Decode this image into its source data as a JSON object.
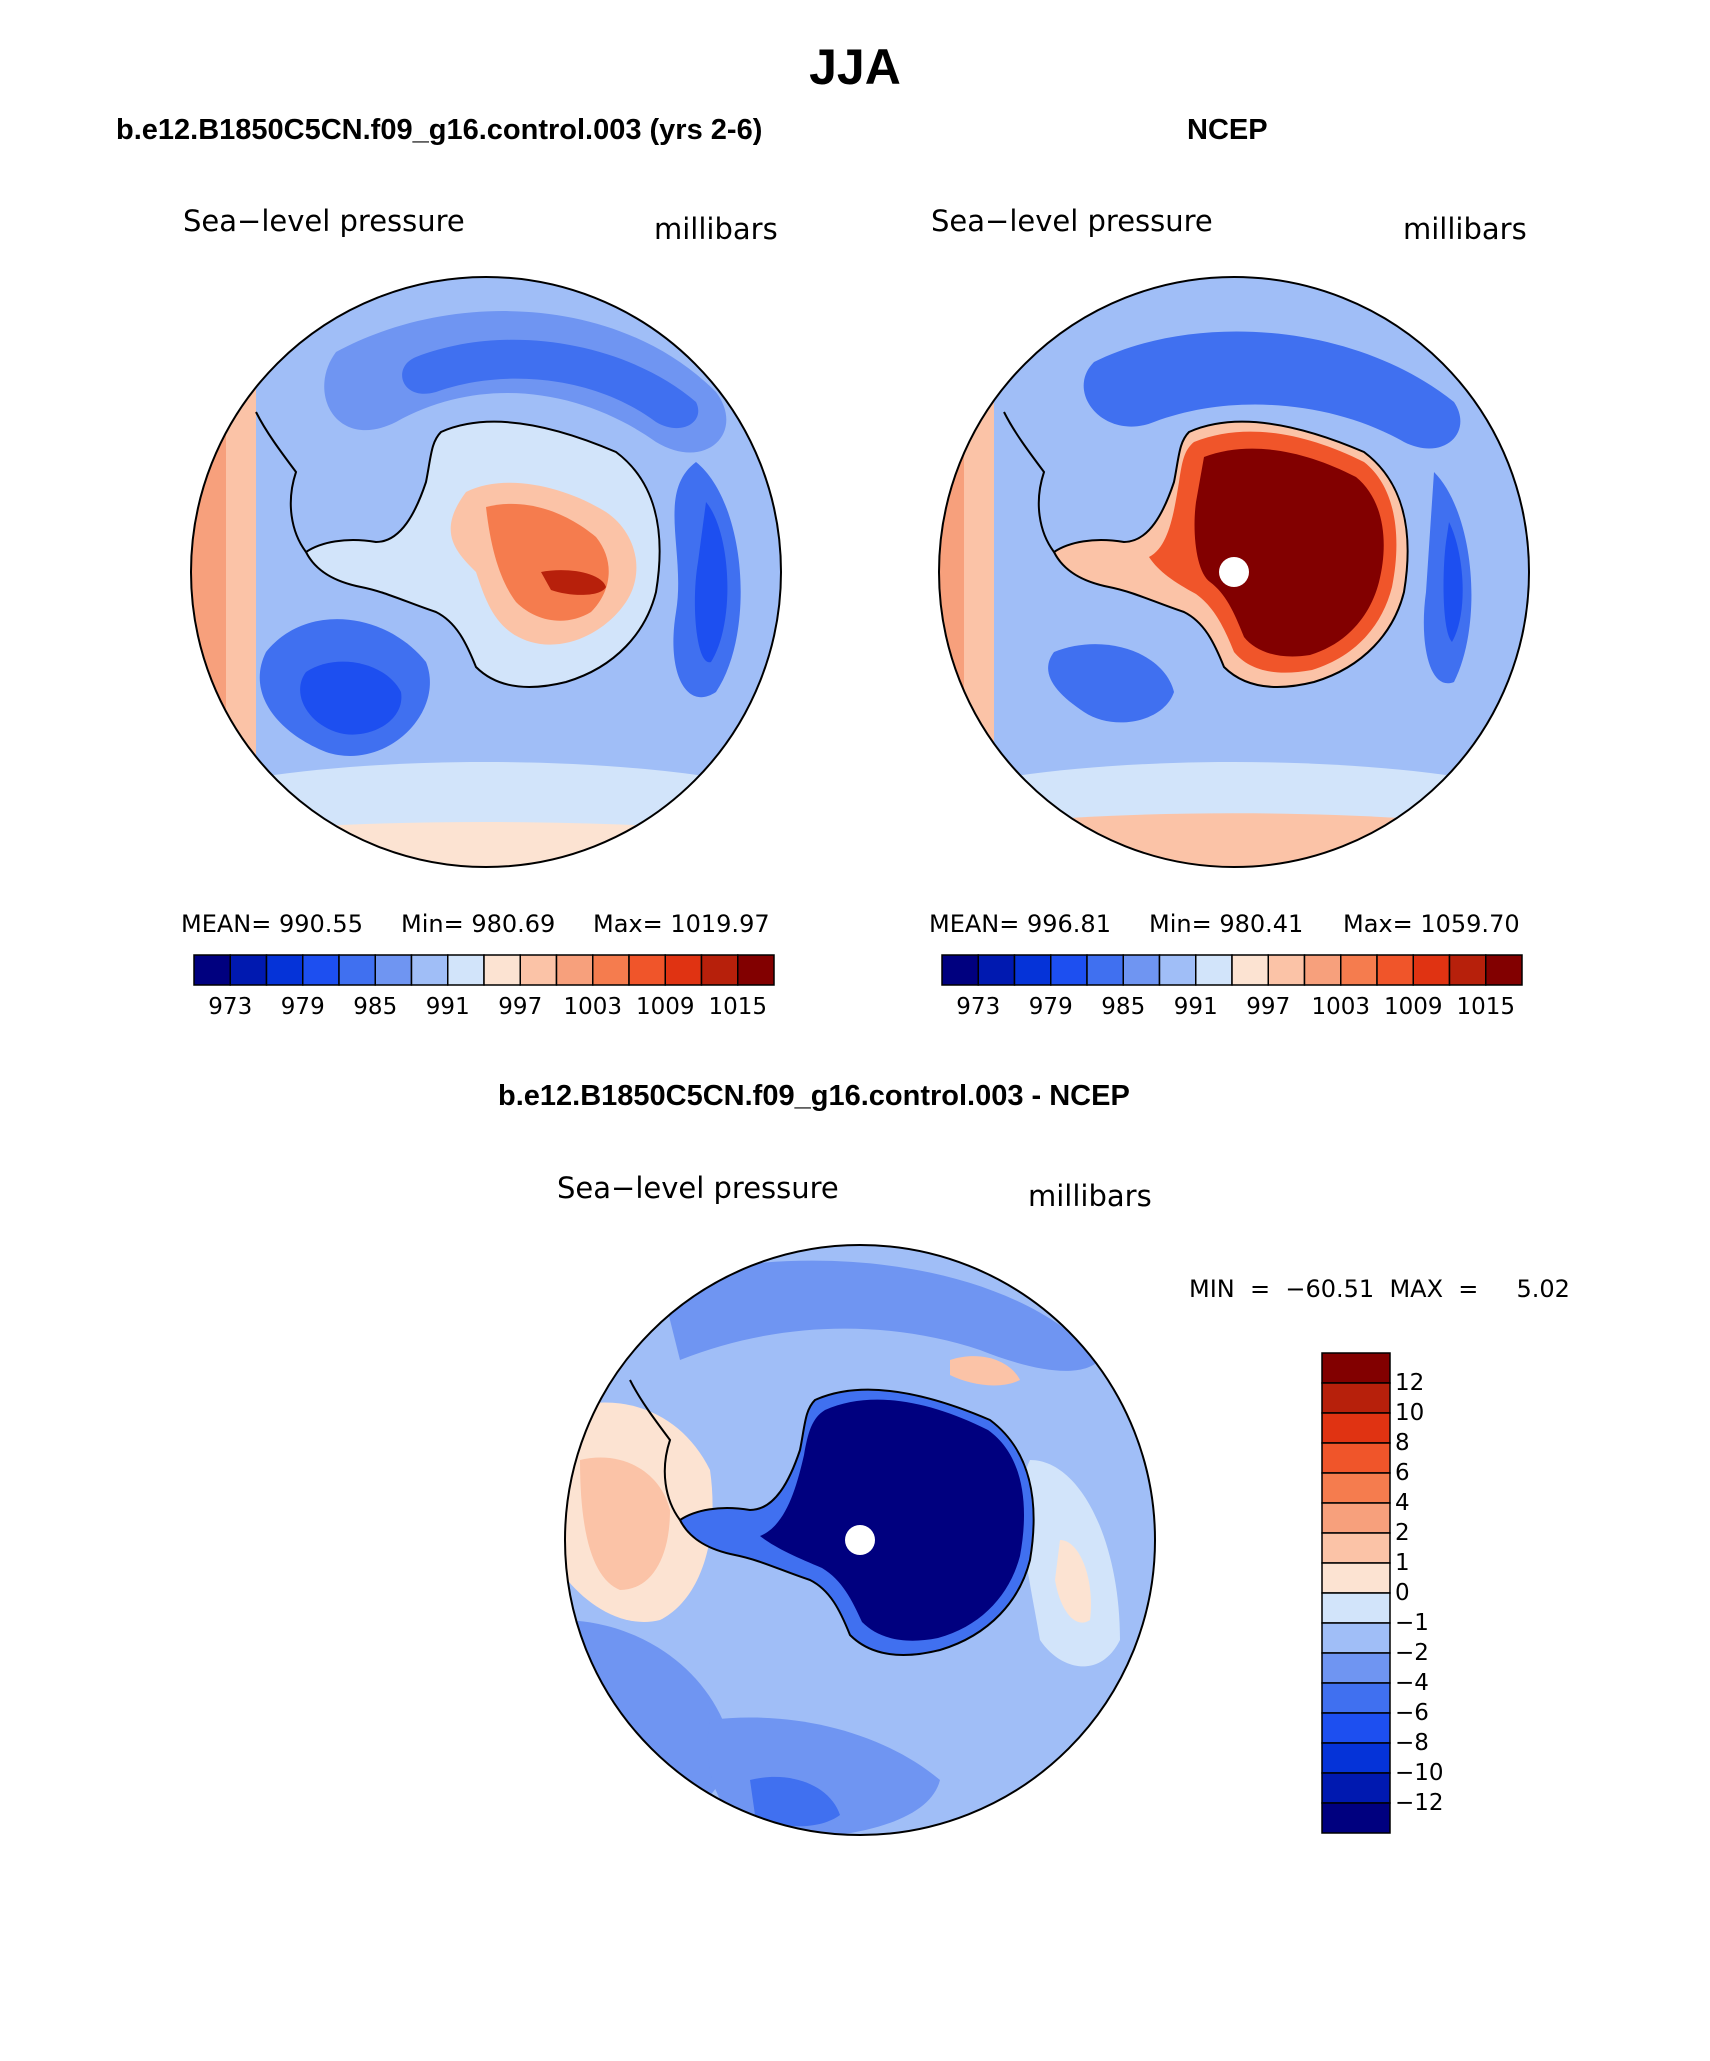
{
  "figure": {
    "title": "JJA",
    "colors": {
      "model_obs_scale": [
        "#00007f",
        "#0019b0",
        "#0533d8",
        "#1d4ff0",
        "#4070f0",
        "#6f95f2",
        "#a0bef7",
        "#d2e4fa",
        "#fce3d2",
        "#fbc3a7",
        "#f7a07c",
        "#f57c4e",
        "#f0552a",
        "#e03312",
        "#b7200b",
        "#820000"
      ],
      "diff_scale": [
        "#00007f",
        "#0019b0",
        "#0533d8",
        "#1d4ff0",
        "#4070f0",
        "#6f95f2",
        "#a0bef7",
        "#d2e4fa",
        "#fce3d2",
        "#fbc3a7",
        "#f7a07c",
        "#f57c4e",
        "#f0552a",
        "#e03312",
        "#b7200b",
        "#820000"
      ],
      "land_outline": "#000000",
      "pole_marker": "#ffffff"
    }
  },
  "panels": {
    "model": {
      "heading": "b.e12.B1850C5CN.f09_g16.control.003 (yrs 2-6)",
      "variable": "Sea−level pressure",
      "units": "millibars",
      "mean_text": "MEAN=  990.55",
      "min_text": "Min=  980.69",
      "max_text": "Max=  1019.97",
      "mean": 990.55,
      "min": 980.69,
      "max": 1019.97,
      "tick_labels": [
        "973",
        "979",
        "985",
        "991",
        "997",
        "1003",
        "1009",
        "1015"
      ]
    },
    "obs": {
      "heading": "NCEP",
      "variable": "Sea−level pressure",
      "units": "millibars",
      "mean_text": "MEAN=  996.81",
      "min_text": "Min=  980.41",
      "max_text": "Max=  1059.70",
      "mean": 996.81,
      "min": 980.41,
      "max": 1059.7,
      "tick_labels": [
        "973",
        "979",
        "985",
        "991",
        "997",
        "1003",
        "1009",
        "1015"
      ]
    },
    "diff": {
      "heading": "b.e12.B1850C5CN.f09_g16.control.003 - NCEP",
      "variable": "Sea−level pressure",
      "units": "millibars",
      "minmax_text": "MIN  =  −60.51  MAX  =     5.02",
      "min": -60.51,
      "max": 5.02,
      "tick_labels": [
        "12",
        "10",
        "8",
        "6",
        "4",
        "2",
        "1",
        "0",
        "−1",
        "−2",
        "−4",
        "−6",
        "−8",
        "−10",
        "−12"
      ]
    }
  }
}
